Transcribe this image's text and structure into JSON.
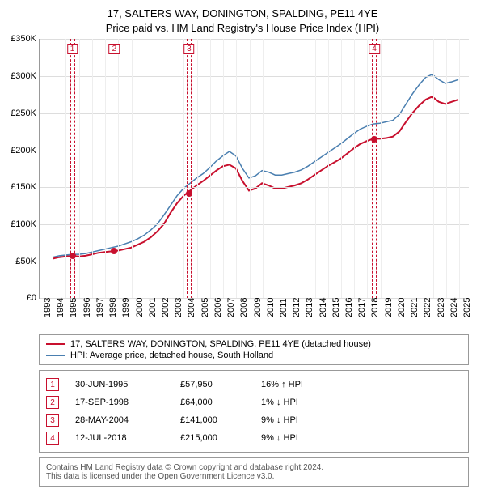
{
  "title": {
    "line1": "17, SALTERS WAY, DONINGTON, SPALDING, PE11 4YE",
    "line2": "Price paid vs. HM Land Registry's House Price Index (HPI)",
    "fontsize": 13
  },
  "chart": {
    "type": "line",
    "background_color": "#ffffff",
    "grid_color_h": "#dddddd",
    "grid_color_v": "#eeeeee",
    "axis_color": "#999999",
    "ylim": [
      0,
      350
    ],
    "ytick_step": 50,
    "yticks": [
      "£0",
      "£50K",
      "£100K",
      "£150K",
      "£200K",
      "£250K",
      "£300K",
      "£350K"
    ],
    "xlim": [
      1993,
      2025.8
    ],
    "xticks": [
      "1993",
      "1994",
      "1995",
      "1996",
      "1997",
      "1998",
      "1999",
      "2000",
      "2001",
      "2002",
      "2003",
      "2004",
      "2005",
      "2006",
      "2007",
      "2008",
      "2009",
      "2010",
      "2011",
      "2012",
      "2013",
      "2014",
      "2015",
      "2016",
      "2017",
      "2018",
      "2019",
      "2020",
      "2021",
      "2022",
      "2023",
      "2024",
      "2025"
    ],
    "label_fontsize": 11,
    "series": [
      {
        "name": "17, SALTERS WAY, DONINGTON, SPALDING, PE11 4YE (detached house)",
        "color": "#c8102e",
        "line_width": 2,
        "points": [
          [
            1994.0,
            53
          ],
          [
            1994.5,
            55
          ],
          [
            1995.0,
            56
          ],
          [
            1995.5,
            57
          ],
          [
            1996.0,
            56
          ],
          [
            1996.5,
            57
          ],
          [
            1997.0,
            59
          ],
          [
            1997.5,
            61
          ],
          [
            1998.0,
            62
          ],
          [
            1998.5,
            63
          ],
          [
            1999.0,
            64
          ],
          [
            1999.5,
            66
          ],
          [
            2000.0,
            68
          ],
          [
            2000.5,
            72
          ],
          [
            2001.0,
            76
          ],
          [
            2001.5,
            82
          ],
          [
            2002.0,
            90
          ],
          [
            2002.5,
            100
          ],
          [
            2003.0,
            115
          ],
          [
            2003.5,
            128
          ],
          [
            2004.0,
            138
          ],
          [
            2004.5,
            145
          ],
          [
            2005.0,
            152
          ],
          [
            2005.5,
            158
          ],
          [
            2006.0,
            165
          ],
          [
            2006.5,
            172
          ],
          [
            2007.0,
            178
          ],
          [
            2007.5,
            180
          ],
          [
            2008.0,
            175
          ],
          [
            2008.5,
            158
          ],
          [
            2009.0,
            145
          ],
          [
            2009.5,
            148
          ],
          [
            2010.0,
            155
          ],
          [
            2010.5,
            152
          ],
          [
            2011.0,
            148
          ],
          [
            2011.5,
            148
          ],
          [
            2012.0,
            150
          ],
          [
            2012.5,
            152
          ],
          [
            2013.0,
            155
          ],
          [
            2013.5,
            160
          ],
          [
            2014.0,
            166
          ],
          [
            2014.5,
            172
          ],
          [
            2015.0,
            178
          ],
          [
            2015.5,
            183
          ],
          [
            2016.0,
            188
          ],
          [
            2016.5,
            195
          ],
          [
            2017.0,
            202
          ],
          [
            2017.5,
            208
          ],
          [
            2018.0,
            212
          ],
          [
            2018.5,
            215
          ],
          [
            2019.0,
            215
          ],
          [
            2019.5,
            216
          ],
          [
            2020.0,
            218
          ],
          [
            2020.5,
            225
          ],
          [
            2021.0,
            238
          ],
          [
            2021.5,
            250
          ],
          [
            2022.0,
            260
          ],
          [
            2022.5,
            268
          ],
          [
            2023.0,
            272
          ],
          [
            2023.5,
            265
          ],
          [
            2024.0,
            262
          ],
          [
            2024.5,
            265
          ],
          [
            2025.0,
            268
          ]
        ]
      },
      {
        "name": "HPI: Average price, detached house, South Holland",
        "color": "#4a7fb0",
        "line_width": 1.5,
        "points": [
          [
            1994.0,
            55
          ],
          [
            1994.5,
            57
          ],
          [
            1995.0,
            58
          ],
          [
            1995.5,
            59
          ],
          [
            1996.0,
            59
          ],
          [
            1996.5,
            60
          ],
          [
            1997.0,
            62
          ],
          [
            1997.5,
            64
          ],
          [
            1998.0,
            66
          ],
          [
            1998.5,
            68
          ],
          [
            1999.0,
            70
          ],
          [
            1999.5,
            73
          ],
          [
            2000.0,
            76
          ],
          [
            2000.5,
            80
          ],
          [
            2001.0,
            85
          ],
          [
            2001.5,
            92
          ],
          [
            2002.0,
            100
          ],
          [
            2002.5,
            112
          ],
          [
            2003.0,
            125
          ],
          [
            2003.5,
            138
          ],
          [
            2004.0,
            148
          ],
          [
            2004.5,
            155
          ],
          [
            2005.0,
            162
          ],
          [
            2005.5,
            168
          ],
          [
            2006.0,
            176
          ],
          [
            2006.5,
            185
          ],
          [
            2007.0,
            192
          ],
          [
            2007.5,
            198
          ],
          [
            2008.0,
            192
          ],
          [
            2008.5,
            175
          ],
          [
            2009.0,
            162
          ],
          [
            2009.5,
            165
          ],
          [
            2010.0,
            172
          ],
          [
            2010.5,
            170
          ],
          [
            2011.0,
            166
          ],
          [
            2011.5,
            166
          ],
          [
            2012.0,
            168
          ],
          [
            2012.5,
            170
          ],
          [
            2013.0,
            173
          ],
          [
            2013.5,
            178
          ],
          [
            2014.0,
            184
          ],
          [
            2014.5,
            190
          ],
          [
            2015.0,
            196
          ],
          [
            2015.5,
            202
          ],
          [
            2016.0,
            208
          ],
          [
            2016.5,
            215
          ],
          [
            2017.0,
            222
          ],
          [
            2017.5,
            228
          ],
          [
            2018.0,
            232
          ],
          [
            2018.5,
            235
          ],
          [
            2019.0,
            236
          ],
          [
            2019.5,
            238
          ],
          [
            2020.0,
            240
          ],
          [
            2020.5,
            248
          ],
          [
            2021.0,
            262
          ],
          [
            2021.5,
            276
          ],
          [
            2022.0,
            288
          ],
          [
            2022.5,
            298
          ],
          [
            2023.0,
            302
          ],
          [
            2023.5,
            295
          ],
          [
            2024.0,
            290
          ],
          [
            2024.5,
            292
          ],
          [
            2025.0,
            295
          ]
        ]
      }
    ],
    "markers": [
      {
        "n": "1",
        "x": 1995.5,
        "pt_x": 1995.5,
        "pt_y": 57
      },
      {
        "n": "2",
        "x": 1998.7,
        "pt_x": 1998.7,
        "pt_y": 64
      },
      {
        "n": "3",
        "x": 2004.4,
        "pt_x": 2004.4,
        "pt_y": 141
      },
      {
        "n": "4",
        "x": 2018.53,
        "pt_x": 2018.53,
        "pt_y": 215
      }
    ],
    "marker_band_color": "#c8102e",
    "point_color": "#c8102e"
  },
  "legend": {
    "items": [
      {
        "label": "17, SALTERS WAY, DONINGTON, SPALDING, PE11 4YE (detached house)",
        "color": "#c8102e"
      },
      {
        "label": "HPI: Average price, detached house, South Holland",
        "color": "#4a7fb0"
      }
    ]
  },
  "transactions": [
    {
      "n": "1",
      "date": "30-JUN-1995",
      "price": "£57,950",
      "pct": "16% ↑ HPI"
    },
    {
      "n": "2",
      "date": "17-SEP-1998",
      "price": "£64,000",
      "pct": "1% ↓ HPI"
    },
    {
      "n": "3",
      "date": "28-MAY-2004",
      "price": "£141,000",
      "pct": "9% ↓ HPI"
    },
    {
      "n": "4",
      "date": "12-JUL-2018",
      "price": "£215,000",
      "pct": "9% ↓ HPI"
    }
  ],
  "footer": {
    "line1": "Contains HM Land Registry data © Crown copyright and database right 2024.",
    "line2": "This data is licensed under the Open Government Licence v3.0."
  }
}
